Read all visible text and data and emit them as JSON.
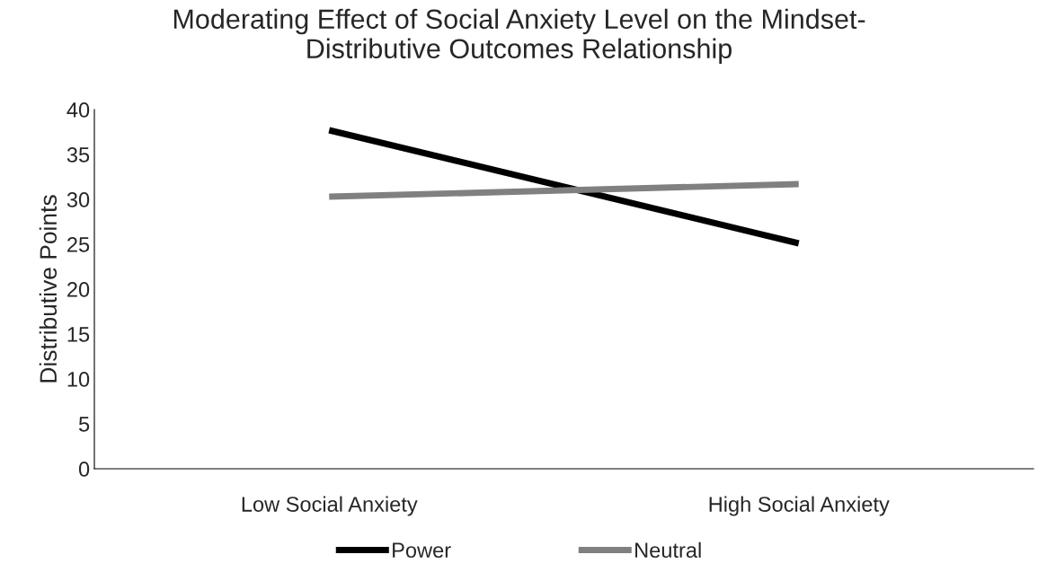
{
  "chart_data": {
    "type": "line",
    "title": "Moderating Effect of Social Anxiety Level on the Mindset-\nDistributive Outcomes Relationship",
    "ylabel": "Distributive Points",
    "categories": [
      "Low Social Anxiety",
      "High Social Anxiety"
    ],
    "series": [
      {
        "name": "Power",
        "color": "#000000",
        "values": [
          37.7,
          25.1
        ]
      },
      {
        "name": "Neutral",
        "color": "#808080",
        "values": [
          30.3,
          31.7
        ]
      }
    ],
    "ylim": [
      0,
      40
    ],
    "yticks": [
      0,
      5,
      10,
      15,
      20,
      25,
      30,
      35,
      40
    ],
    "grid": false,
    "legend": "bottom",
    "marker": "none",
    "line_style": "solid"
  }
}
